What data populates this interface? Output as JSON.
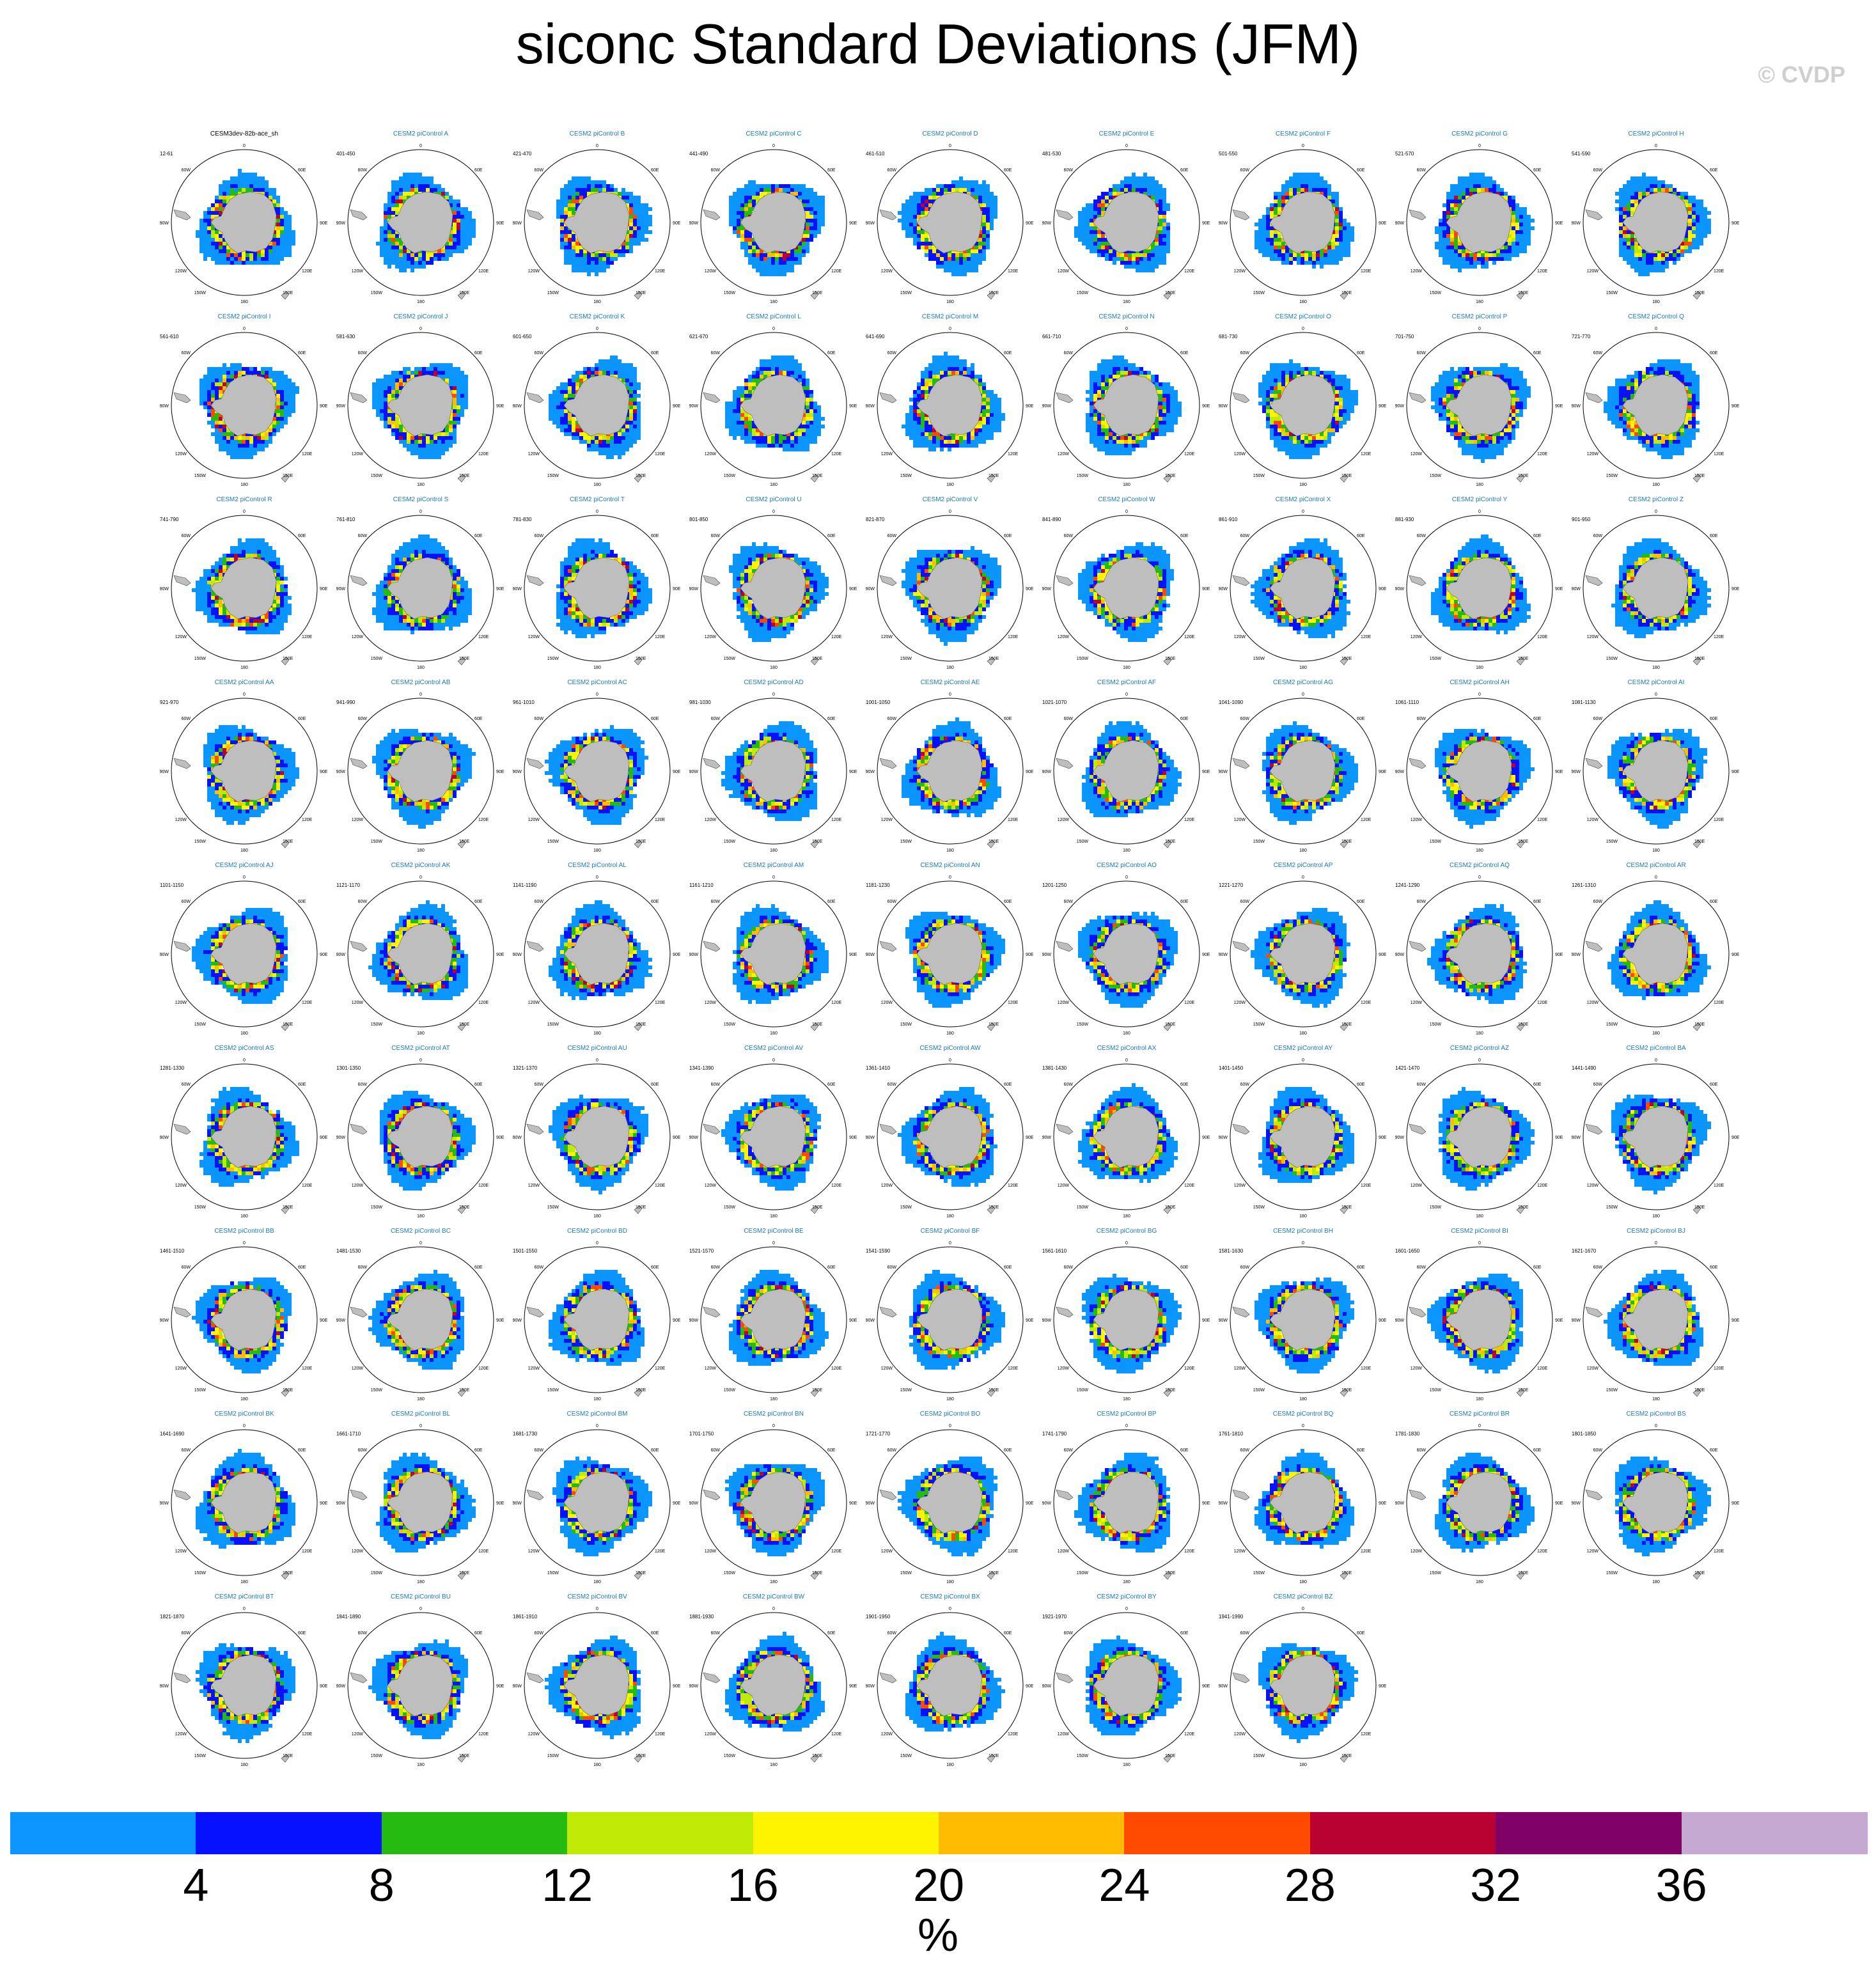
{
  "title": "siconc Standard Deviations (JFM)",
  "watermark": "© CVDP",
  "chart_data": {
    "type": "heatmap",
    "projection": "south-polar-stereographic",
    "layout": {
      "columns": 9,
      "rows": 9
    },
    "panels": [
      {
        "title": "CESM3dev-82b-ace_sh",
        "years": "12-61"
      },
      {
        "title": "CESM2 piControl A",
        "years": "401-450"
      },
      {
        "title": "CESM2 piControl B",
        "years": "421-470"
      },
      {
        "title": "CESM2 piControl C",
        "years": "441-490"
      },
      {
        "title": "CESM2 piControl D",
        "years": "461-510"
      },
      {
        "title": "CESM2 piControl E",
        "years": "481-530"
      },
      {
        "title": "CESM2 piControl F",
        "years": "501-550"
      },
      {
        "title": "CESM2 piControl G",
        "years": "521-570"
      },
      {
        "title": "CESM2 piControl H",
        "years": "541-590"
      },
      {
        "title": "CESM2 piControl I",
        "years": "561-610"
      },
      {
        "title": "CESM2 piControl J",
        "years": "581-630"
      },
      {
        "title": "CESM2 piControl K",
        "years": "601-650"
      },
      {
        "title": "CESM2 piControl L",
        "years": "621-670"
      },
      {
        "title": "CESM2 piControl M",
        "years": "641-690"
      },
      {
        "title": "CESM2 piControl N",
        "years": "661-710"
      },
      {
        "title": "CESM2 piControl O",
        "years": "681-730"
      },
      {
        "title": "CESM2 piControl P",
        "years": "701-750"
      },
      {
        "title": "CESM2 piControl Q",
        "years": "721-770"
      },
      {
        "title": "CESM2 piControl R",
        "years": "741-790"
      },
      {
        "title": "CESM2 piControl S",
        "years": "761-810"
      },
      {
        "title": "CESM2 piControl T",
        "years": "781-830"
      },
      {
        "title": "CESM2 piControl U",
        "years": "801-850"
      },
      {
        "title": "CESM2 piControl V",
        "years": "821-870"
      },
      {
        "title": "CESM2 piControl W",
        "years": "841-890"
      },
      {
        "title": "CESM2 piControl X",
        "years": "861-910"
      },
      {
        "title": "CESM2 piControl Y",
        "years": "881-930"
      },
      {
        "title": "CESM2 piControl Z",
        "years": "901-950"
      },
      {
        "title": "CESM2 piControl AA",
        "years": "921-970"
      },
      {
        "title": "CESM2 piControl AB",
        "years": "941-990"
      },
      {
        "title": "CESM2 piControl AC",
        "years": "961-1010"
      },
      {
        "title": "CESM2 piControl AD",
        "years": "981-1030"
      },
      {
        "title": "CESM2 piControl AE",
        "years": "1001-1050"
      },
      {
        "title": "CESM2 piControl AF",
        "years": "1021-1070"
      },
      {
        "title": "CESM2 piControl AG",
        "years": "1041-1090"
      },
      {
        "title": "CESM2 piControl AH",
        "years": "1061-1110"
      },
      {
        "title": "CESM2 piControl AI",
        "years": "1081-1130"
      },
      {
        "title": "CESM2 piControl AJ",
        "years": "1101-1150"
      },
      {
        "title": "CESM2 piControl AK",
        "years": "1121-1170"
      },
      {
        "title": "CESM2 piControl AL",
        "years": "1141-1190"
      },
      {
        "title": "CESM2 piControl AM",
        "years": "1161-1210"
      },
      {
        "title": "CESM2 piControl AN",
        "years": "1181-1230"
      },
      {
        "title": "CESM2 piControl AO",
        "years": "1201-1250"
      },
      {
        "title": "CESM2 piControl AP",
        "years": "1221-1270"
      },
      {
        "title": "CESM2 piControl AQ",
        "years": "1241-1290"
      },
      {
        "title": "CESM2 piControl AR",
        "years": "1261-1310"
      },
      {
        "title": "CESM2 piControl AS",
        "years": "1281-1330"
      },
      {
        "title": "CESM2 piControl AT",
        "years": "1301-1350"
      },
      {
        "title": "CESM2 piControl AU",
        "years": "1321-1370"
      },
      {
        "title": "CESM2 piControl AV",
        "years": "1341-1390"
      },
      {
        "title": "CESM2 piControl AW",
        "years": "1361-1410"
      },
      {
        "title": "CESM2 piControl AX",
        "years": "1381-1430"
      },
      {
        "title": "CESM2 piControl AY",
        "years": "1401-1450"
      },
      {
        "title": "CESM2 piControl AZ",
        "years": "1421-1470"
      },
      {
        "title": "CESM2 piControl BA",
        "years": "1441-1490"
      },
      {
        "title": "CESM2 piControl BB",
        "years": "1461-1510"
      },
      {
        "title": "CESM2 piControl BC",
        "years": "1481-1530"
      },
      {
        "title": "CESM2 piControl BD",
        "years": "1501-1550"
      },
      {
        "title": "CESM2 piControl BE",
        "years": "1521-1570"
      },
      {
        "title": "CESM2 piControl BF",
        "years": "1541-1590"
      },
      {
        "title": "CESM2 piControl BG",
        "years": "1561-1610"
      },
      {
        "title": "CESM2 piControl BH",
        "years": "1581-1630"
      },
      {
        "title": "CESM2 piControl BI",
        "years": "1601-1650"
      },
      {
        "title": "CESM2 piControl BJ",
        "years": "1621-1670"
      },
      {
        "title": "CESM2 piControl BK",
        "years": "1641-1690"
      },
      {
        "title": "CESM2 piControl BL",
        "years": "1661-1710"
      },
      {
        "title": "CESM2 piControl BM",
        "years": "1681-1730"
      },
      {
        "title": "CESM2 piControl BN",
        "years": "1701-1750"
      },
      {
        "title": "CESM2 piControl BO",
        "years": "1721-1770"
      },
      {
        "title": "CESM2 piControl BP",
        "years": "1741-1790"
      },
      {
        "title": "CESM2 piControl BQ",
        "years": "1761-1810"
      },
      {
        "title": "CESM2 piControl BR",
        "years": "1781-1830"
      },
      {
        "title": "CESM2 piControl BS",
        "years": "1801-1850"
      },
      {
        "title": "CESM2 piControl BT",
        "years": "1821-1870"
      },
      {
        "title": "CESM2 piControl BU",
        "years": "1841-1890"
      },
      {
        "title": "CESM2 piControl BV",
        "years": "1861-1910"
      },
      {
        "title": "CESM2 piControl BW",
        "years": "1881-1930"
      },
      {
        "title": "CESM2 piControl BX",
        "years": "1901-1950"
      },
      {
        "title": "CESM2 piControl BY",
        "years": "1921-1970"
      },
      {
        "title": "CESM2 piControl BZ",
        "years": "1941-1990"
      }
    ],
    "map_labels": {
      "lon_top": "0",
      "lon_bottom": "180",
      "lon_left": "90W",
      "lon_right": "90E",
      "lon_top_left": "60W",
      "lon_top_right": "60E",
      "lon_bottom_left": "120W",
      "lon_bottom_right": "120E",
      "lon_bottom_left_outer": "150W",
      "lon_bottom_right_outer": "150E"
    },
    "colorbar": {
      "levels": [
        4,
        8,
        12,
        16,
        20,
        24,
        28,
        32,
        36
      ],
      "tick_labels": [
        "4",
        "8",
        "12",
        "16",
        "20",
        "24",
        "28",
        "32",
        "36"
      ],
      "colors": [
        "#0b95ff",
        "#0511ff",
        "#25bb10",
        "#bfea06",
        "#fff400",
        "#ffbc00",
        "#ff4a00",
        "#ba0232",
        "#7f0167",
        "#c6a9d3"
      ],
      "unit": "%"
    },
    "land_color": "#bebebe",
    "background": "#ffffff"
  }
}
